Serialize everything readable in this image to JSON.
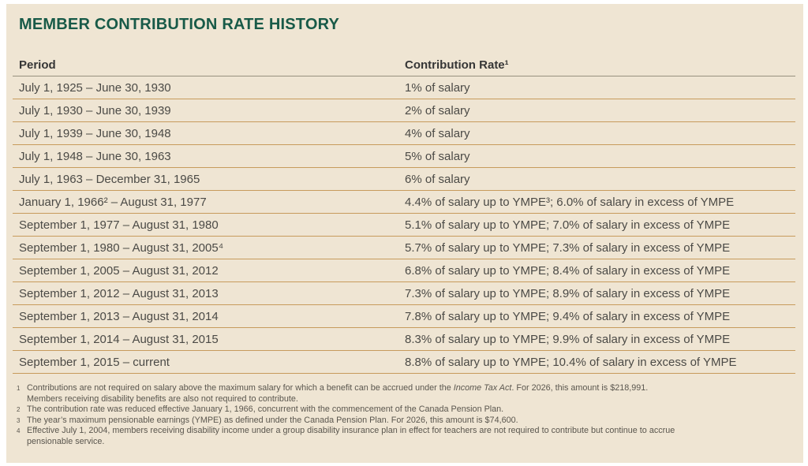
{
  "title": "MEMBER CONTRIBUTION RATE HISTORY",
  "colors": {
    "card_background": "#efe5d3",
    "title_green": "#185a48",
    "row_divider_tan": "#c79b5c",
    "header_rule_gray": "#97907f",
    "body_text": "#4b4a46",
    "footnote_text": "#5a564e"
  },
  "table": {
    "columns": [
      "Period",
      "Contribution Rate¹"
    ],
    "rows": [
      {
        "period": "July 1, 1925 – June 30, 1930",
        "rate": "1% of salary"
      },
      {
        "period": "July 1, 1930 – June 30, 1939",
        "rate": "2% of salary"
      },
      {
        "period": "July 1, 1939 – June 30, 1948",
        "rate": "4% of salary"
      },
      {
        "period": "July 1, 1948 – June 30, 1963",
        "rate": "5% of salary"
      },
      {
        "period": "July 1, 1963 – December 31, 1965",
        "rate": "6% of salary"
      },
      {
        "period": "January 1, 1966² – August 31, 1977",
        "rate": "4.4% of salary up to YMPE³; 6.0% of salary in excess of YMPE"
      },
      {
        "period": "September 1, 1977 – August 31, 1980",
        "rate": "5.1% of salary up to YMPE; 7.0% of salary in excess of YMPE"
      },
      {
        "period": "September 1, 1980 – August 31, 2005⁴",
        "rate": "5.7% of salary up to YMPE; 7.3% of salary in excess of YMPE"
      },
      {
        "period": "September 1, 2005 – August 31, 2012",
        "rate": "6.8% of salary up to YMPE; 8.4% of salary in excess of YMPE"
      },
      {
        "period": "September 1, 2012 – August 31, 2013",
        "rate": "7.3% of salary up to YMPE; 8.9% of salary in excess of YMPE"
      },
      {
        "period": "September 1, 2013 – August 31, 2014",
        "rate": "7.8% of salary up to YMPE; 9.4% of salary in excess of YMPE"
      },
      {
        "period": "September 1, 2014 – August 31, 2015",
        "rate": "8.3% of salary up to YMPE; 9.9% of salary in excess of YMPE"
      },
      {
        "period": "September 1, 2015 – current",
        "rate": "8.8% of salary up to YMPE; 10.4% of salary in excess of YMPE"
      }
    ]
  },
  "footnotes": [
    {
      "marker": "1",
      "text_before": "Contributions are not required on salary above the maximum salary for which a benefit can be accrued under the ",
      "italic_text": "Income Tax Act",
      "text_after": ". For 2026, this amount is $218,991.",
      "line2": "Members receiving disability benefits are also not required to contribute."
    },
    {
      "marker": "2",
      "text": "The contribution rate was reduced effective January 1, 1966, concurrent with the commencement of the Canada Pension Plan."
    },
    {
      "marker": "3",
      "text": "The year’s maximum pensionable earnings (YMPE) as defined under the Canada Pension Plan. For 2026, this amount is $74,600."
    },
    {
      "marker": "4",
      "text": "Effective July 1, 2004, members receiving disability income under a group disability insurance plan in effect for teachers are not required to contribute but continue to accrue",
      "line2": "pensionable service."
    }
  ]
}
